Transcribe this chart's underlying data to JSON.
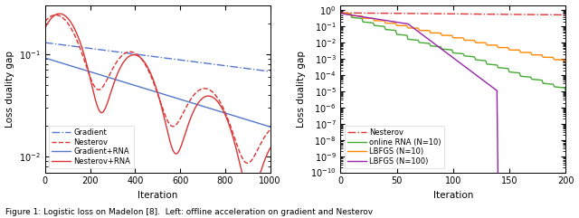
{
  "fig_width": 6.4,
  "fig_height": 2.41,
  "dpi": 100,
  "left_xlabel": "Iteration",
  "right_xlabel": "Iteration",
  "left_ylabel": "Loss duality gap",
  "right_ylabel": "Loss duality gap",
  "left_xlim": [
    0,
    1000
  ],
  "right_xlim": [
    0,
    200
  ],
  "left_xticks": [
    0,
    200,
    400,
    600,
    800,
    1000
  ],
  "right_xticks": [
    0,
    50,
    100,
    150,
    200
  ],
  "left_legend": [
    "Gradient",
    "Nesterov",
    "Gradient+RNA",
    "Nesterov+RNA"
  ],
  "right_legend": [
    "Nesterov",
    "online RNA (N=10)",
    "LBFGS (N=10)",
    "LBFGS (N=100)"
  ],
  "colors_left": [
    "#5577cc",
    "#dd3333",
    "#5577cc",
    "#dd3333"
  ],
  "colors_right": [
    "#dd3333",
    "#44aa33",
    "#ff8800",
    "#9922aa"
  ],
  "bg_color": "#ffffff",
  "caption": "Figure 1: Logistic loss on Madelon [8].  Left: offline acceleration on gradient and Nesterov"
}
